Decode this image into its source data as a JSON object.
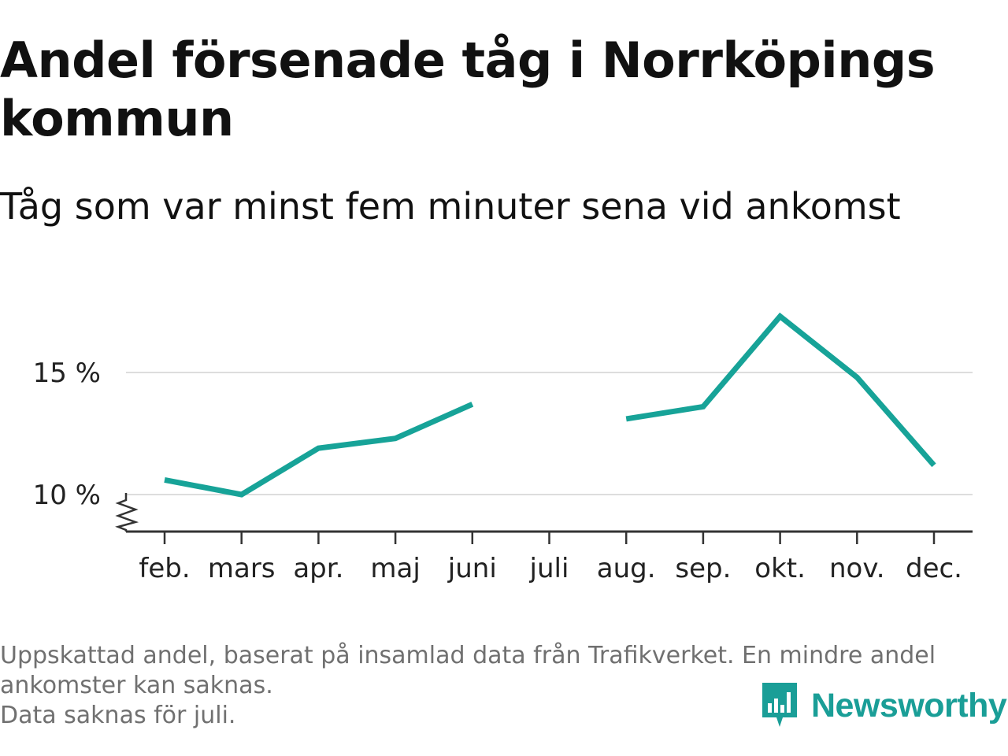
{
  "title": "Andel försenade tåg i Norrköpings kommun",
  "subtitle": "Tåg som var minst fem minuter sena vid ankomst",
  "footer": {
    "line1": "Uppskattad andel, baserat på insamlad data från Trafikverket. En mindre andel",
    "line2": "ankomster kan saknas.",
    "line3": "Data saknas för juli."
  },
  "brand": {
    "name": "Newsworthy",
    "color": "#1a9e97",
    "icon": "newsworthy-logo-icon"
  },
  "colors": {
    "line": "#17a398",
    "grid": "#dddddd",
    "axis": "#333333",
    "text": "#222222"
  },
  "chart_data": {
    "type": "line",
    "categories": [
      "feb.",
      "mars",
      "apr.",
      "maj",
      "juni",
      "juli",
      "aug.",
      "sep.",
      "okt.",
      "nov.",
      "dec."
    ],
    "series": [
      {
        "values": [
          10.6,
          10.0,
          11.9,
          12.3,
          13.7,
          null,
          13.1,
          13.6,
          17.3,
          14.8,
          11.2
        ]
      }
    ],
    "yticks": [
      10,
      15
    ],
    "ytick_labels": [
      "10 %",
      "15 %"
    ],
    "ylim": [
      8.5,
      18
    ],
    "grid": true,
    "axis_break": true,
    "legend": "none",
    "xlabel": "",
    "ylabel": ""
  }
}
